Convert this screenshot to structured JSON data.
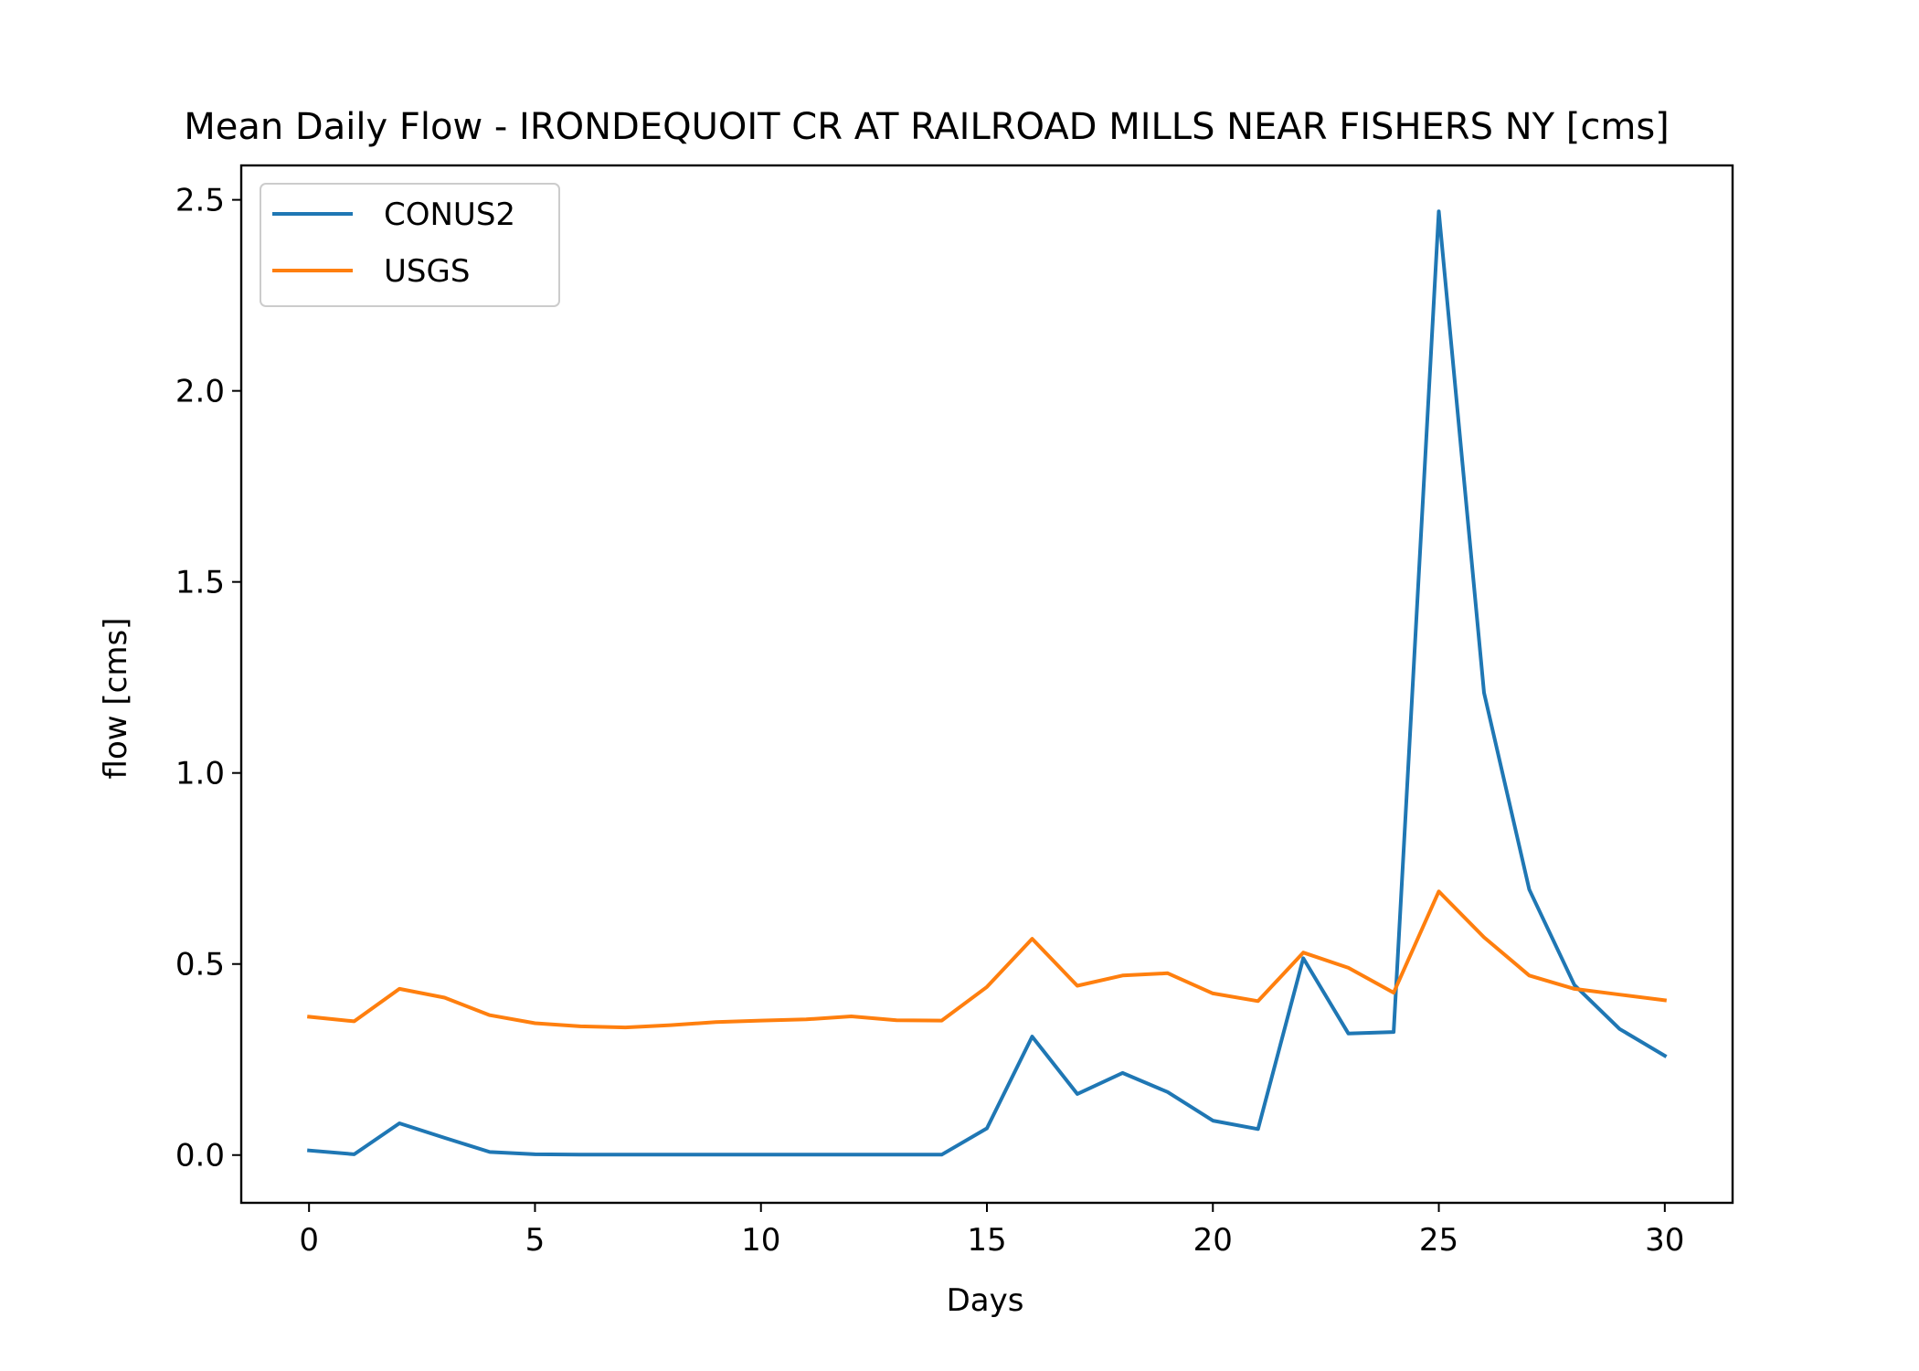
{
  "chart_data": {
    "type": "line",
    "title": "Mean Daily Flow - IRONDEQUOIT CR AT RAILROAD MILLS NEAR FISHERS NY [cms]",
    "xlabel": "Days",
    "ylabel": "flow [cms]",
    "xlim": [
      -1.5,
      31.5
    ],
    "ylim": [
      -0.125,
      2.59
    ],
    "x_ticks": [
      0,
      5,
      10,
      15,
      20,
      25,
      30
    ],
    "x_tick_labels": [
      "0",
      "5",
      "10",
      "15",
      "20",
      "25",
      "30"
    ],
    "y_ticks": [
      0.0,
      0.5,
      1.0,
      1.5,
      2.0,
      2.5
    ],
    "y_tick_labels": [
      "0.0",
      "0.5",
      "1.0",
      "1.5",
      "2.0",
      "2.5"
    ],
    "grid": false,
    "legend_position": "upper-left",
    "x": [
      0,
      1,
      2,
      3,
      4,
      5,
      6,
      7,
      8,
      9,
      10,
      11,
      12,
      13,
      14,
      15,
      16,
      17,
      18,
      19,
      20,
      21,
      22,
      23,
      24,
      25,
      26,
      27,
      28,
      29,
      30
    ],
    "series": [
      {
        "name": "CONUS2",
        "color": "#1f77b4",
        "values": [
          0.012,
          0.002,
          0.083,
          0.045,
          0.008,
          0.002,
          0.001,
          0.001,
          0.001,
          0.001,
          0.001,
          0.001,
          0.001,
          0.001,
          0.001,
          0.07,
          0.31,
          0.16,
          0.215,
          0.165,
          0.09,
          0.068,
          0.515,
          0.318,
          0.322,
          2.47,
          1.21,
          0.695,
          0.445,
          0.33,
          0.26
        ]
      },
      {
        "name": "USGS",
        "color": "#ff7f0e",
        "values": [
          0.362,
          0.35,
          0.435,
          0.412,
          0.366,
          0.345,
          0.337,
          0.334,
          0.34,
          0.348,
          0.352,
          0.355,
          0.363,
          0.353,
          0.352,
          0.44,
          0.566,
          0.443,
          0.47,
          0.476,
          0.423,
          0.403,
          0.53,
          0.49,
          0.425,
          0.69,
          0.57,
          0.47,
          0.435,
          0.42,
          0.405
        ]
      }
    ]
  }
}
